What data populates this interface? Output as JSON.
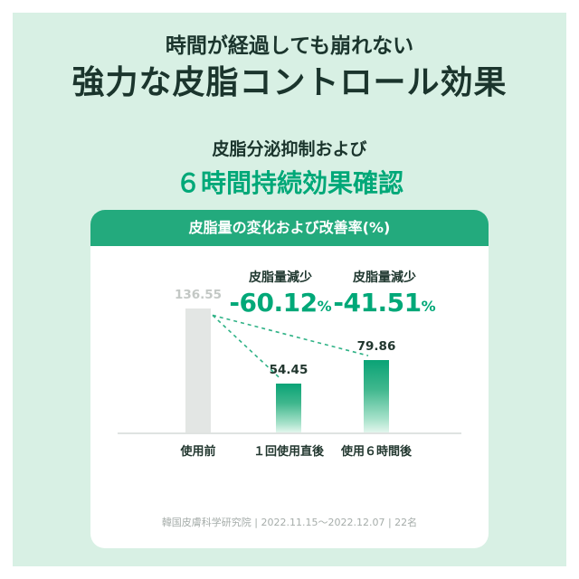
{
  "colors": {
    "background_mint": "#d8f0e4",
    "card_white": "#ffffff",
    "accent_green": "#00a878",
    "header_bar_green": "#23aa7d",
    "dark_text": "#1b352d",
    "gray_bar": "#e3e6e4",
    "gray_value_text": "#c3c8c5",
    "footnote_gray": "#a6adaa"
  },
  "header": {
    "line1": "時間が経過しても崩れない",
    "line2": "強力な皮脂コントロール効果",
    "sub1": "皮脂分泌抑制および",
    "sub2": "６時間持続効果確認"
  },
  "card": {
    "title": "皮脂量の変化および改善率(%)",
    "footnote": "韓国皮膚科学研究院 | 2022.11.15～2022.12.07 | 22名"
  },
  "chart_data": {
    "type": "bar",
    "title": "皮脂量の変化および改善率(%)",
    "categories": [
      "使用前",
      "１回使用直後",
      "使用６時間後"
    ],
    "values": [
      136.55,
      54.45,
      79.86
    ],
    "value_labels": [
      "136.55",
      "54.45",
      "79.86"
    ],
    "annotations": [
      {
        "over_category": "１回使用直後",
        "label": "皮脂量減少",
        "value": "-60.12",
        "unit": "%"
      },
      {
        "over_category": "使用６時間後",
        "label": "皮脂量減少",
        "value": "-41.51",
        "unit": "%"
      }
    ],
    "ylim": [
      0,
      150
    ],
    "grid": false,
    "legend": false,
    "bar_colors": [
      "gray",
      "green-gradient",
      "green-gradient"
    ],
    "connector_lines": "dashed from top of first bar to tops of second and third bars"
  }
}
